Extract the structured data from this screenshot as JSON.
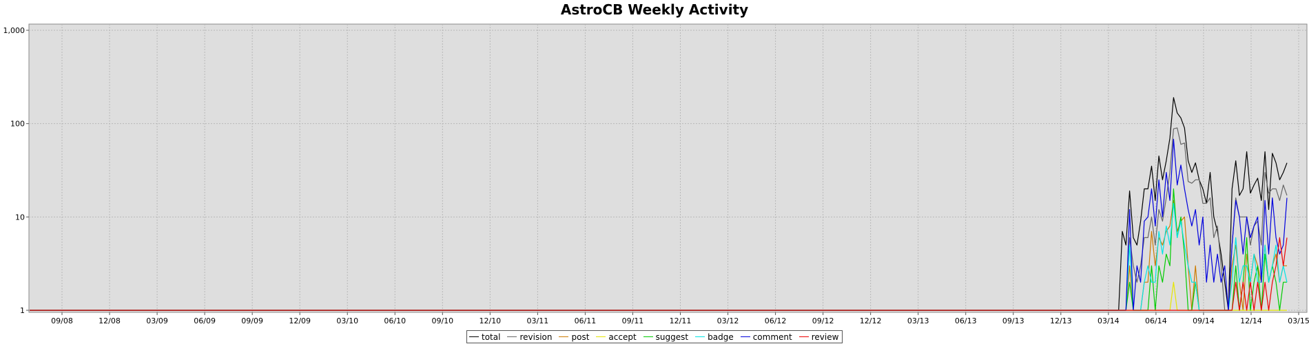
{
  "chart_data": {
    "type": "line",
    "title": "AstroCB Weekly Activity",
    "xlabel": "",
    "ylabel": "",
    "y_scale": "log",
    "ylim": [
      1,
      1000
    ],
    "grid": true,
    "legend_position": "bottom",
    "y_ticks": [
      {
        "value": 1,
        "label": "1"
      },
      {
        "value": 10,
        "label": "10"
      },
      {
        "value": 100,
        "label": "100"
      },
      {
        "value": 1000,
        "label": "1,000"
      }
    ],
    "x_tick_labels": [
      "09/08",
      "12/08",
      "03/09",
      "06/09",
      "09/09",
      "12/09",
      "03/10",
      "06/10",
      "09/10",
      "12/10",
      "03/11",
      "06/11",
      "09/11",
      "12/11",
      "03/12",
      "06/12",
      "09/12",
      "12/12",
      "03/13",
      "06/13",
      "09/13",
      "12/13",
      "03/14",
      "06/14",
      "09/14",
      "12/14",
      "03/15"
    ],
    "active_period_start_week_offset": 0,
    "baseline_value": 1,
    "series": [
      {
        "name": "total",
        "color": "#000000",
        "values": [
          7,
          5,
          19,
          6,
          5,
          9,
          20,
          20,
          35,
          15,
          45,
          25,
          40,
          70,
          190,
          130,
          115,
          90,
          40,
          30,
          38,
          25,
          20,
          14,
          30,
          10,
          7,
          4,
          2,
          1,
          20,
          40,
          17,
          20,
          50,
          18,
          22,
          26,
          15,
          50,
          12,
          48,
          38,
          25,
          30,
          38
        ]
      },
      {
        "name": "revision",
        "color": "#666666",
        "values": [
          1,
          1,
          6,
          3,
          2,
          3,
          6,
          6,
          10,
          5,
          12,
          9,
          16,
          30,
          88,
          90,
          60,
          62,
          24,
          23,
          25,
          25,
          14,
          14,
          16,
          6,
          8,
          3,
          1,
          1,
          5,
          16,
          10,
          10,
          10,
          5,
          8,
          9,
          5,
          30,
          18,
          20,
          20,
          15,
          22,
          17
        ]
      },
      {
        "name": "post",
        "color": "#cc7a00",
        "values": [
          1,
          1,
          3,
          1,
          1,
          1,
          2,
          2,
          7,
          3,
          6,
          5,
          7,
          8,
          15,
          7,
          9,
          10,
          3,
          1,
          3,
          1,
          1,
          1,
          1,
          1,
          1,
          1,
          1,
          1,
          3,
          5,
          2,
          1,
          4,
          2,
          4,
          3,
          2,
          5,
          2,
          3,
          4,
          2,
          3,
          3
        ]
      },
      {
        "name": "accept",
        "color": "#e6e600",
        "values": [
          1,
          1,
          1,
          1,
          1,
          1,
          1,
          1,
          1,
          1,
          1,
          1,
          1,
          1,
          2,
          1,
          1,
          1,
          1,
          1,
          1,
          1,
          1,
          1,
          1,
          1,
          1,
          1,
          1,
          1,
          1,
          1,
          1,
          1,
          1,
          1,
          1,
          1,
          1,
          1,
          1,
          1,
          1,
          1,
          1,
          1
        ]
      },
      {
        "name": "suggest",
        "color": "#00cc00",
        "values": [
          1,
          1,
          2,
          1,
          1,
          1,
          1,
          1,
          3,
          1,
          3,
          2,
          4,
          3,
          20,
          6,
          10,
          4,
          1,
          1,
          2,
          1,
          1,
          1,
          1,
          1,
          1,
          1,
          1,
          1,
          1,
          3,
          1,
          2,
          6,
          1,
          2,
          3,
          1,
          4,
          2,
          3,
          2,
          1,
          2,
          2
        ]
      },
      {
        "name": "badge",
        "color": "#00e5e5",
        "values": [
          1,
          1,
          5,
          1,
          1,
          1,
          2,
          3,
          2,
          2,
          7,
          4,
          8,
          5,
          14,
          6,
          9,
          5,
          3,
          2,
          2,
          1,
          1,
          1,
          1,
          1,
          1,
          1,
          1,
          1,
          2,
          6,
          2,
          3,
          3,
          2,
          4,
          2,
          2,
          5,
          2,
          3,
          5,
          2,
          3,
          2
        ]
      },
      {
        "name": "comment",
        "color": "#0000dd",
        "values": [
          1,
          1,
          12,
          1,
          3,
          2,
          9,
          10,
          20,
          8,
          25,
          10,
          30,
          15,
          68,
          22,
          36,
          20,
          12,
          8,
          12,
          5,
          10,
          2,
          5,
          2,
          4,
          2,
          3,
          1,
          5,
          15,
          10,
          4,
          10,
          6,
          8,
          10,
          2,
          15,
          4,
          16,
          6,
          4,
          5,
          16
        ]
      },
      {
        "name": "review",
        "color": "#ee0000",
        "values": [
          1,
          1,
          1,
          1,
          1,
          1,
          1,
          1,
          1,
          1,
          1,
          1,
          1,
          1,
          1,
          1,
          1,
          1,
          1,
          1,
          1,
          1,
          1,
          1,
          1,
          1,
          1,
          1,
          1,
          1,
          1,
          2,
          1,
          2,
          1,
          2,
          1,
          2,
          1,
          2,
          1,
          2,
          3,
          6,
          3,
          6
        ]
      }
    ]
  }
}
